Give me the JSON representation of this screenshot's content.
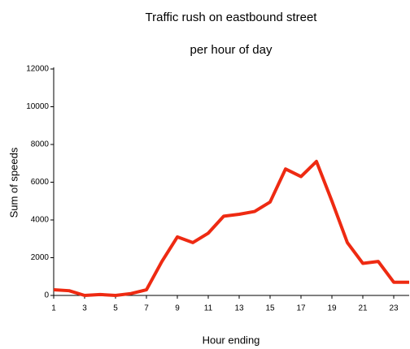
{
  "chart_data": {
    "type": "line",
    "title": "Traffic rush on eastbound street",
    "subtitle": "per hour of day",
    "x_label": "Hour ending",
    "y_label": "Sum of speeds",
    "x": [
      1,
      2,
      3,
      4,
      5,
      6,
      7,
      8,
      9,
      10,
      11,
      12,
      13,
      14,
      15,
      16,
      17,
      18,
      19,
      20,
      21,
      22,
      23,
      24
    ],
    "series": [
      {
        "name": "Sum of speeds",
        "color": "#ee2a12",
        "values": [
          300,
          250,
          0,
          50,
          0,
          100,
          300,
          1800,
          3100,
          2800,
          3300,
          4200,
          4300,
          4450,
          4950,
          6700,
          6300,
          7100,
          5000,
          2800,
          1700,
          1800,
          700,
          700
        ]
      }
    ],
    "xlim": [
      1,
      24
    ],
    "xticks": [
      1,
      3,
      5,
      7,
      9,
      11,
      13,
      15,
      17,
      19,
      21,
      23
    ],
    "ylim": [
      0,
      12000
    ],
    "yticks": [
      0,
      2000,
      4000,
      6000,
      8000,
      10000,
      12000
    ]
  }
}
